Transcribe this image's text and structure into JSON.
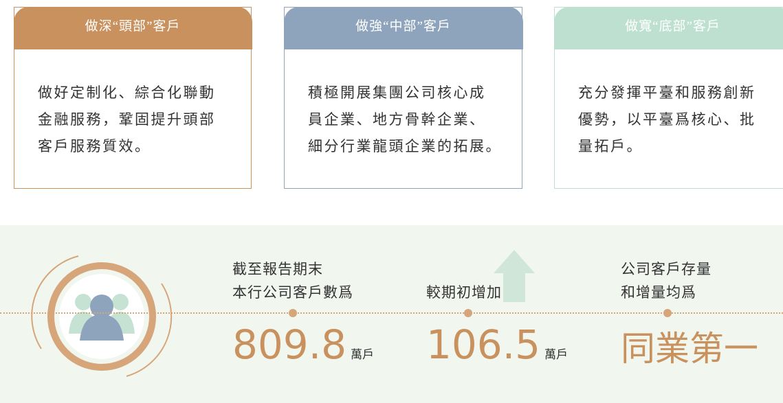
{
  "cards": [
    {
      "title": "做深“頭部”客戶",
      "lines": [
        "做好定制化、綜合化聯動",
        "金融服務，鞏固提升頭部",
        "客戶服務質效。"
      ]
    },
    {
      "title": "做強“中部”客戶",
      "lines": [
        "積極開展集團公司核心成",
        "員企業、地方骨幹企業、",
        "細分行業龍頭企業的拓展。"
      ]
    },
    {
      "title": "做寬“底部”客戶",
      "lines": [
        "充分發揮平臺和服務創新",
        "優勢，以平臺爲核心、批",
        "量拓戶。"
      ]
    }
  ],
  "stats": [
    {
      "label": [
        "截至報告期末",
        "本行公司客戶數爲"
      ],
      "value": 809.8,
      "unit": "萬戶"
    },
    {
      "label": [
        "較期初增加"
      ],
      "value": 106.5,
      "unit": "萬戶"
    },
    {
      "label": [
        "公司客戶存量",
        "和增量均爲"
      ],
      "value": "同業第一"
    }
  ]
}
